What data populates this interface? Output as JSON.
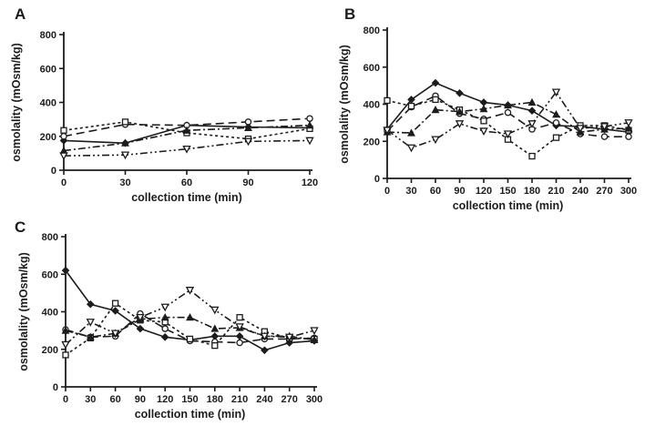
{
  "figure": {
    "background": "#ffffff",
    "ink_color": "#1c1c1c",
    "axis_label_y": "osmolality (mOsm/kg)",
    "axis_label_x": "collection time (min)"
  },
  "panels": [
    {
      "letter": "A"
    },
    {
      "letter": "B"
    },
    {
      "letter": "C"
    }
  ],
  "chart_data": [
    {
      "type": "line",
      "panel": "A",
      "title": "",
      "xlabel": "collection time (min)",
      "ylabel": "osmolality (mOsm/kg)",
      "xlim": [
        0,
        120
      ],
      "ylim": [
        0,
        800
      ],
      "xticks": [
        0,
        30,
        60,
        90,
        120
      ],
      "yticks": [
        0,
        200,
        400,
        600,
        800
      ],
      "grid": false,
      "legend_position": "none",
      "x": [
        0,
        30,
        60,
        90,
        120
      ],
      "series": [
        {
          "name": "diamond",
          "marker": "diamond",
          "line": "solid",
          "values": [
            175,
            160,
            265,
            255,
            250
          ]
        },
        {
          "name": "circle",
          "marker": "circle",
          "line": "long-dash",
          "values": [
            200,
            270,
            265,
            285,
            305
          ]
        },
        {
          "name": "square",
          "marker": "square",
          "line": "dotted",
          "values": [
            235,
            285,
            220,
            185,
            245
          ]
        },
        {
          "name": "triangle-up",
          "marker": "triangle-up",
          "line": "dash-dot",
          "values": [
            115,
            160,
            235,
            250,
            265
          ]
        },
        {
          "name": "triangle-down",
          "marker": "triangle-down",
          "line": "dash-dot-dot",
          "values": [
            85,
            90,
            125,
            170,
            175
          ]
        }
      ]
    },
    {
      "type": "line",
      "panel": "B",
      "title": "",
      "xlabel": "collection time (min)",
      "ylabel": "osmolality (mOsm/kg)",
      "xlim": [
        0,
        300
      ],
      "ylim": [
        0,
        800
      ],
      "xticks": [
        0,
        30,
        60,
        90,
        120,
        150,
        180,
        210,
        240,
        270,
        300
      ],
      "yticks": [
        0,
        200,
        400,
        600,
        800
      ],
      "grid": false,
      "legend_position": "none",
      "x": [
        0,
        30,
        60,
        90,
        120,
        150,
        180,
        210,
        240,
        270,
        300
      ],
      "series": [
        {
          "name": "diamond",
          "marker": "diamond",
          "line": "solid",
          "values": [
            265,
            425,
            515,
            460,
            410,
            395,
            365,
            285,
            280,
            265,
            250
          ]
        },
        {
          "name": "circle",
          "marker": "circle",
          "line": "long-dash",
          "values": [
            255,
            385,
            445,
            350,
            320,
            355,
            265,
            300,
            240,
            225,
            225
          ]
        },
        {
          "name": "square",
          "marker": "square",
          "line": "dotted",
          "values": [
            420,
            390,
            425,
            370,
            310,
            210,
            120,
            220,
            285,
            285,
            260
          ]
        },
        {
          "name": "triangle-up",
          "marker": "triangle-up",
          "line": "dash-dot",
          "values": [
            250,
            245,
            370,
            360,
            375,
            395,
            410,
            345,
            250,
            265,
            270
          ]
        },
        {
          "name": "triangle-down",
          "marker": "triangle-down",
          "line": "dash-dot-dot",
          "values": [
            260,
            165,
            210,
            295,
            255,
            240,
            295,
            465,
            270,
            280,
            300
          ]
        }
      ]
    },
    {
      "type": "line",
      "panel": "C",
      "title": "",
      "xlabel": "collection time (min)",
      "ylabel": "osmolality (mOsm/kg)",
      "xlim": [
        0,
        300
      ],
      "ylim": [
        0,
        800
      ],
      "xticks": [
        0,
        30,
        60,
        90,
        120,
        150,
        180,
        210,
        240,
        270,
        300
      ],
      "yticks": [
        0,
        200,
        400,
        600,
        800
      ],
      "grid": false,
      "legend_position": "none",
      "x": [
        0,
        30,
        60,
        90,
        120,
        150,
        180,
        210,
        240,
        270,
        300
      ],
      "series": [
        {
          "name": "diamond",
          "marker": "diamond",
          "line": "solid",
          "values": [
            620,
            440,
            405,
            310,
            265,
            250,
            270,
            270,
            195,
            235,
            245
          ]
        },
        {
          "name": "circle",
          "marker": "circle",
          "line": "long-dash",
          "values": [
            305,
            265,
            270,
            390,
            310,
            245,
            240,
            235,
            255,
            255,
            260
          ]
        },
        {
          "name": "square",
          "marker": "square",
          "line": "dotted",
          "values": [
            170,
            260,
            445,
            355,
            345,
            255,
            220,
            370,
            295,
            260,
            255
          ]
        },
        {
          "name": "triangle-up",
          "marker": "triangle-up",
          "line": "dash-dot",
          "values": [
            300,
            265,
            285,
            360,
            370,
            370,
            310,
            315,
            270,
            270,
            250
          ]
        },
        {
          "name": "triangle-down",
          "marker": "triangle-down",
          "line": "dash-dot-dot",
          "values": [
            225,
            345,
            285,
            370,
            425,
            515,
            410,
            320,
            270,
            265,
            300
          ]
        }
      ]
    }
  ]
}
